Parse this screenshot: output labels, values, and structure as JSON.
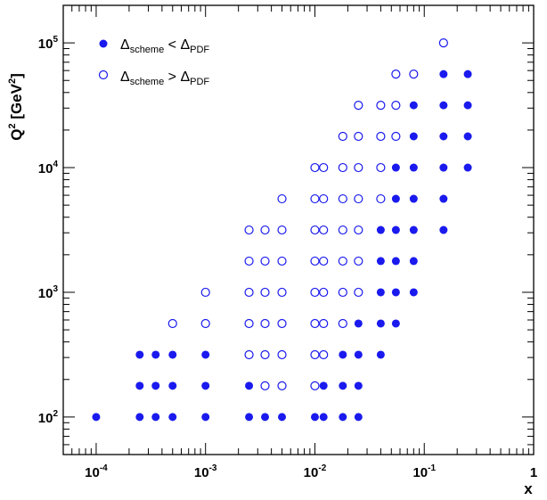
{
  "chart_data": {
    "type": "scatter",
    "xlabel": "x",
    "ylabel": {
      "base": "Q",
      "exp1": "2",
      "unit_open": " [GeV",
      "exp2": "2",
      "unit_close": "]"
    },
    "xscale": "log",
    "yscale": "log",
    "xlim": [
      5e-05,
      1
    ],
    "ylim": [
      50,
      200000
    ],
    "x_ticks": [
      {
        "value": 0.0001,
        "base": "10",
        "exp": "-4"
      },
      {
        "value": 0.001,
        "base": "10",
        "exp": "-3"
      },
      {
        "value": 0.01,
        "base": "10",
        "exp": "-2"
      },
      {
        "value": 0.1,
        "base": "10",
        "exp": "-1"
      },
      {
        "value": 1,
        "base": "1",
        "exp": ""
      }
    ],
    "y_ticks": [
      {
        "value": 100,
        "base": "10",
        "exp": "2"
      },
      {
        "value": 1000,
        "base": "10",
        "exp": "3"
      },
      {
        "value": 10000,
        "base": "10",
        "exp": "4"
      },
      {
        "value": 100000,
        "base": "10",
        "exp": "5"
      }
    ],
    "grid": false,
    "legend_position": "top-left",
    "marker_color": "#1a1aee",
    "series": [
      {
        "name": "Δscheme < ΔPDF",
        "legend": {
          "delta1": "Δ",
          "sub1": "scheme",
          "op": " < ",
          "delta2": "Δ",
          "sub2": "PDF"
        },
        "marker": "filled-circle",
        "points": [
          [
            0.0001,
            100
          ],
          [
            0.00025,
            100
          ],
          [
            0.00035,
            100
          ],
          [
            0.0005,
            100
          ],
          [
            0.001,
            100
          ],
          [
            0.0025,
            100
          ],
          [
            0.0035,
            100
          ],
          [
            0.005,
            100
          ],
          [
            0.01,
            100
          ],
          [
            0.012,
            100
          ],
          [
            0.018,
            100
          ],
          [
            0.025,
            100
          ],
          [
            0.00025,
            178
          ],
          [
            0.00035,
            178
          ],
          [
            0.0005,
            178
          ],
          [
            0.001,
            178
          ],
          [
            0.0025,
            178
          ],
          [
            0.012,
            178
          ],
          [
            0.018,
            178
          ],
          [
            0.025,
            178
          ],
          [
            0.00025,
            316
          ],
          [
            0.00035,
            316
          ],
          [
            0.0005,
            316
          ],
          [
            0.001,
            316
          ],
          [
            0.018,
            316
          ],
          [
            0.025,
            316
          ],
          [
            0.04,
            316
          ],
          [
            0.025,
            562
          ],
          [
            0.04,
            562
          ],
          [
            0.055,
            562
          ],
          [
            0.04,
            1000
          ],
          [
            0.055,
            1000
          ],
          [
            0.08,
            1000
          ],
          [
            0.04,
            1780
          ],
          [
            0.055,
            1780
          ],
          [
            0.08,
            1780
          ],
          [
            0.04,
            3160
          ],
          [
            0.055,
            3160
          ],
          [
            0.08,
            3160
          ],
          [
            0.15,
            3160
          ],
          [
            0.055,
            5620
          ],
          [
            0.08,
            5620
          ],
          [
            0.15,
            5620
          ],
          [
            0.055,
            10000
          ],
          [
            0.08,
            10000
          ],
          [
            0.15,
            10000
          ],
          [
            0.25,
            10000
          ],
          [
            0.08,
            17800
          ],
          [
            0.15,
            17800
          ],
          [
            0.25,
            17800
          ],
          [
            0.08,
            31600
          ],
          [
            0.15,
            31600
          ],
          [
            0.25,
            31600
          ],
          [
            0.15,
            56200
          ],
          [
            0.25,
            56200
          ]
        ]
      },
      {
        "name": "Δscheme > ΔPDF",
        "legend": {
          "delta1": "Δ",
          "sub1": "scheme",
          "op": " > ",
          "delta2": "Δ",
          "sub2": "PDF"
        },
        "marker": "open-circle",
        "points": [
          [
            0.0035,
            178
          ],
          [
            0.005,
            178
          ],
          [
            0.01,
            178
          ],
          [
            0.0025,
            316
          ],
          [
            0.0035,
            316
          ],
          [
            0.005,
            316
          ],
          [
            0.01,
            316
          ],
          [
            0.012,
            316
          ],
          [
            0.0005,
            562
          ],
          [
            0.001,
            562
          ],
          [
            0.0025,
            562
          ],
          [
            0.0035,
            562
          ],
          [
            0.005,
            562
          ],
          [
            0.01,
            562
          ],
          [
            0.012,
            562
          ],
          [
            0.018,
            562
          ],
          [
            0.001,
            1000
          ],
          [
            0.0025,
            1000
          ],
          [
            0.0035,
            1000
          ],
          [
            0.005,
            1000
          ],
          [
            0.01,
            1000
          ],
          [
            0.012,
            1000
          ],
          [
            0.018,
            1000
          ],
          [
            0.025,
            1000
          ],
          [
            0.0025,
            1780
          ],
          [
            0.0035,
            1780
          ],
          [
            0.005,
            1780
          ],
          [
            0.01,
            1780
          ],
          [
            0.012,
            1780
          ],
          [
            0.018,
            1780
          ],
          [
            0.025,
            1780
          ],
          [
            0.0025,
            3160
          ],
          [
            0.0035,
            3160
          ],
          [
            0.005,
            3160
          ],
          [
            0.01,
            3160
          ],
          [
            0.012,
            3160
          ],
          [
            0.018,
            3160
          ],
          [
            0.025,
            3160
          ],
          [
            0.005,
            5620
          ],
          [
            0.01,
            5620
          ],
          [
            0.012,
            5620
          ],
          [
            0.018,
            5620
          ],
          [
            0.025,
            5620
          ],
          [
            0.04,
            5620
          ],
          [
            0.01,
            10000
          ],
          [
            0.012,
            10000
          ],
          [
            0.018,
            10000
          ],
          [
            0.025,
            10000
          ],
          [
            0.04,
            10000
          ],
          [
            0.018,
            17800
          ],
          [
            0.025,
            17800
          ],
          [
            0.04,
            17800
          ],
          [
            0.055,
            17800
          ],
          [
            0.025,
            31600
          ],
          [
            0.04,
            31600
          ],
          [
            0.055,
            31600
          ],
          [
            0.055,
            56200
          ],
          [
            0.08,
            56200
          ],
          [
            0.15,
            100000
          ]
        ]
      }
    ]
  }
}
